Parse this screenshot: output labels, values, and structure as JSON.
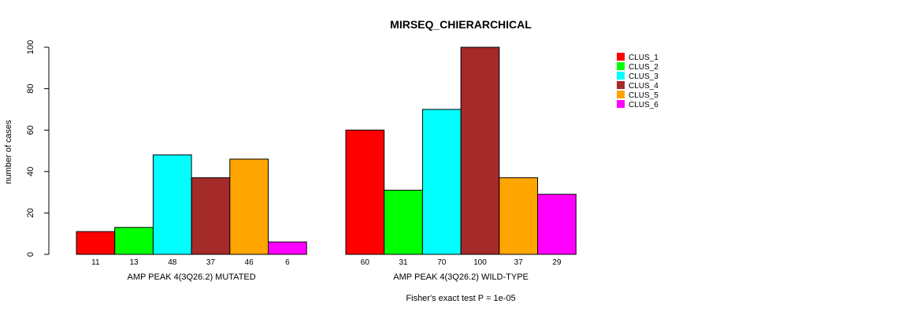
{
  "chart_data": {
    "type": "bar",
    "title": "MIRSEQ_CHIERARCHICAL",
    "ylabel": "number of cases",
    "footnote": "Fisher's exact test P = 1e-05",
    "ylim": [
      0,
      100
    ],
    "yticks": [
      0,
      20,
      40,
      60,
      80,
      100
    ],
    "legend_position": "top-right",
    "groups": [
      "AMP PEAK  4(3Q26.2) MUTATED",
      "AMP PEAK  4(3Q26.2) WILD-TYPE"
    ],
    "series": [
      {
        "name": "CLUS_1",
        "color": "#ff0000",
        "values": [
          11,
          60
        ]
      },
      {
        "name": "CLUS_2",
        "color": "#00ff00",
        "values": [
          13,
          31
        ]
      },
      {
        "name": "CLUS_3",
        "color": "#00ffff",
        "values": [
          48,
          70
        ]
      },
      {
        "name": "CLUS_4",
        "color": "#a52a2a",
        "values": [
          37,
          100
        ]
      },
      {
        "name": "CLUS_5",
        "color": "#ffa500",
        "values": [
          46,
          37
        ]
      },
      {
        "name": "CLUS_6",
        "color": "#ff00ff",
        "values": [
          6,
          29
        ]
      }
    ]
  }
}
